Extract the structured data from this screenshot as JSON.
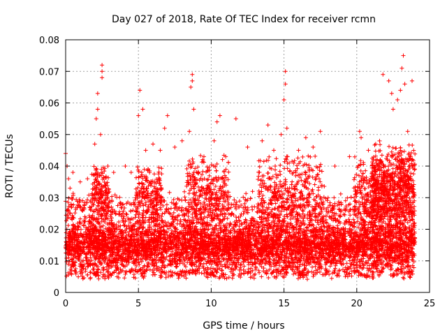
{
  "chart_data": {
    "type": "scatter",
    "title": "Day 027 of 2018, Rate Of TEC Index for receiver rcmn",
    "xlabel": "GPS time / hours",
    "ylabel": "ROTI / TECUs",
    "xlim": [
      0,
      25
    ],
    "ylim": [
      0,
      0.08
    ],
    "x_ticks": [
      0,
      5,
      10,
      15,
      20,
      25
    ],
    "y_ticks": [
      0,
      0.01,
      0.02,
      0.03,
      0.04,
      0.05,
      0.06,
      0.07,
      0.08
    ],
    "x_tick_labels": [
      "0",
      "5",
      "10",
      "15",
      "20",
      "25"
    ],
    "y_tick_labels": [
      "0",
      "0.01",
      "0.02",
      "0.03",
      "0.04",
      "0.05",
      "0.06",
      "0.07",
      "0.08"
    ],
    "grid": true,
    "marker": "plus",
    "color": "#ff0000",
    "series": [
      {
        "points": [
          [
            0.0,
            0.044
          ],
          [
            0.1,
            0.04
          ],
          [
            0.2,
            0.036
          ],
          [
            0.3,
            0.033
          ],
          [
            0.5,
            0.038
          ],
          [
            1.0,
            0.035
          ],
          [
            1.5,
            0.036
          ],
          [
            2.0,
            0.047
          ],
          [
            2.1,
            0.055
          ],
          [
            2.2,
            0.058
          ],
          [
            2.2,
            0.063
          ],
          [
            2.5,
            0.072
          ],
          [
            2.5,
            0.07
          ],
          [
            2.5,
            0.068
          ],
          [
            2.4,
            0.05
          ],
          [
            2.9,
            0.04
          ],
          [
            3.3,
            0.038
          ],
          [
            4.1,
            0.04
          ],
          [
            4.5,
            0.038
          ],
          [
            5.0,
            0.056
          ],
          [
            5.1,
            0.064
          ],
          [
            5.3,
            0.058
          ],
          [
            5.5,
            0.045
          ],
          [
            6.0,
            0.047
          ],
          [
            6.5,
            0.045
          ],
          [
            6.8,
            0.052
          ],
          [
            7.0,
            0.056
          ],
          [
            7.5,
            0.046
          ],
          [
            8.0,
            0.048
          ],
          [
            8.5,
            0.051
          ],
          [
            8.6,
            0.065
          ],
          [
            8.7,
            0.069
          ],
          [
            8.7,
            0.067
          ],
          [
            8.8,
            0.058
          ],
          [
            9.5,
            0.043
          ],
          [
            10.2,
            0.048
          ],
          [
            10.4,
            0.054
          ],
          [
            10.6,
            0.056
          ],
          [
            11.0,
            0.043
          ],
          [
            11.7,
            0.055
          ],
          [
            12.5,
            0.046
          ],
          [
            13.5,
            0.048
          ],
          [
            13.9,
            0.053
          ],
          [
            14.3,
            0.045
          ],
          [
            14.8,
            0.05
          ],
          [
            15.0,
            0.061
          ],
          [
            15.1,
            0.066
          ],
          [
            15.1,
            0.07
          ],
          [
            15.2,
            0.052
          ],
          [
            16.0,
            0.045
          ],
          [
            16.5,
            0.049
          ],
          [
            17.0,
            0.046
          ],
          [
            17.5,
            0.051
          ],
          [
            18.5,
            0.04
          ],
          [
            19.5,
            0.043
          ],
          [
            20.2,
            0.051
          ],
          [
            20.3,
            0.049
          ],
          [
            20.8,
            0.045
          ],
          [
            21.3,
            0.047
          ],
          [
            21.8,
            0.069
          ],
          [
            22.2,
            0.067
          ],
          [
            22.4,
            0.063
          ],
          [
            22.5,
            0.058
          ],
          [
            22.8,
            0.061
          ],
          [
            23.0,
            0.064
          ],
          [
            23.1,
            0.071
          ],
          [
            23.2,
            0.075
          ],
          [
            23.3,
            0.066
          ],
          [
            23.5,
            0.051
          ],
          [
            23.8,
            0.067
          ]
        ],
        "bands": [
          {
            "x": [
              0,
              24
            ],
            "y": [
              0.006,
              0.024
            ],
            "count": 5200
          },
          {
            "x": [
              0,
              24
            ],
            "y": [
              0.02,
              0.032
            ],
            "count": 900
          },
          {
            "x": [
              0,
              24
            ],
            "y": [
              0.004,
              0.008
            ],
            "count": 400
          },
          {
            "x": [
              21,
              24
            ],
            "y": [
              0.02,
              0.048
            ],
            "count": 700
          },
          {
            "x": [
              1.8,
              3.0
            ],
            "y": [
              0.02,
              0.042
            ],
            "count": 160
          },
          {
            "x": [
              4.8,
              6.6
            ],
            "y": [
              0.02,
              0.042
            ],
            "count": 200
          },
          {
            "x": [
              8.3,
              11.2
            ],
            "y": [
              0.02,
              0.044
            ],
            "count": 260
          },
          {
            "x": [
              13.2,
              17.8
            ],
            "y": [
              0.02,
              0.045
            ],
            "count": 320
          },
          {
            "x": [
              19.8,
              21.5
            ],
            "y": [
              0.02,
              0.043
            ],
            "count": 160
          }
        ]
      }
    ]
  }
}
